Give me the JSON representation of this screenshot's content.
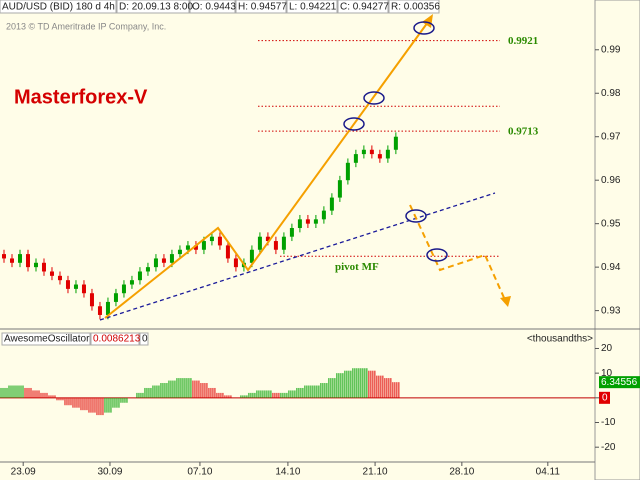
{
  "header": {
    "symbol": "AUD/USD (BID) 180 d 4h",
    "date": "D: 20.09.13 8:00",
    "open": "O: 0.9443",
    "high": "H: 0.94577",
    "low": "L: 0.94221",
    "close": "C: 0.94277",
    "range": "R: 0.00356"
  },
  "copyright": "2013 © TD Ameritrade IP Company, Inc.",
  "chart_data": [
    {
      "type": "candlestick",
      "annotation": "Masterforex-V",
      "up_color": "#00a000",
      "down_color": "#e00000",
      "xlim": [
        -0.5,
        73.9
      ],
      "ylim": [
        0.926,
        0.998
      ],
      "yticks": [
        0.93,
        0.94,
        0.95,
        0.96,
        0.97,
        0.98,
        0.99
      ],
      "levels": [
        {
          "price": 0.9921
        },
        {
          "price": 0.977
        },
        {
          "price": 0.9713
        },
        {
          "price": 0.9425,
          "label": "pivot MF"
        }
      ],
      "candles": [
        [
          0.943,
          0.944,
          0.941,
          0.942
        ],
        [
          0.942,
          0.943,
          0.94,
          0.941
        ],
        [
          0.941,
          0.944,
          0.94,
          0.943
        ],
        [
          0.943,
          0.944,
          0.939,
          0.94
        ],
        [
          0.94,
          0.942,
          0.939,
          0.941
        ],
        [
          0.941,
          0.942,
          0.938,
          0.939
        ],
        [
          0.939,
          0.94,
          0.937,
          0.938
        ],
        [
          0.938,
          0.939,
          0.936,
          0.937
        ],
        [
          0.937,
          0.938,
          0.934,
          0.935
        ],
        [
          0.935,
          0.937,
          0.934,
          0.936
        ],
        [
          0.936,
          0.937,
          0.933,
          0.934
        ],
        [
          0.934,
          0.935,
          0.93,
          0.931
        ],
        [
          0.931,
          0.932,
          0.928,
          0.929
        ],
        [
          0.929,
          0.933,
          0.928,
          0.932
        ],
        [
          0.932,
          0.935,
          0.931,
          0.934
        ],
        [
          0.934,
          0.937,
          0.933,
          0.936
        ],
        [
          0.936,
          0.938,
          0.935,
          0.937
        ],
        [
          0.937,
          0.94,
          0.936,
          0.939
        ],
        [
          0.939,
          0.941,
          0.938,
          0.94
        ],
        [
          0.94,
          0.943,
          0.939,
          0.942
        ],
        [
          0.942,
          0.943,
          0.94,
          0.941
        ],
        [
          0.941,
          0.944,
          0.94,
          0.943
        ],
        [
          0.943,
          0.945,
          0.942,
          0.944
        ],
        [
          0.944,
          0.946,
          0.943,
          0.945
        ],
        [
          0.945,
          0.946,
          0.943,
          0.944
        ],
        [
          0.944,
          0.947,
          0.943,
          0.946
        ],
        [
          0.946,
          0.948,
          0.945,
          0.947
        ],
        [
          0.947,
          0.948,
          0.944,
          0.945
        ],
        [
          0.945,
          0.946,
          0.941,
          0.942
        ],
        [
          0.942,
          0.943,
          0.939,
          0.94
        ],
        [
          0.94,
          0.942,
          0.939,
          0.941
        ],
        [
          0.941,
          0.945,
          0.94,
          0.944
        ],
        [
          0.944,
          0.948,
          0.943,
          0.947
        ],
        [
          0.947,
          0.948,
          0.945,
          0.946
        ],
        [
          0.946,
          0.947,
          0.943,
          0.944
        ],
        [
          0.944,
          0.948,
          0.943,
          0.947
        ],
        [
          0.947,
          0.95,
          0.946,
          0.949
        ],
        [
          0.949,
          0.952,
          0.948,
          0.951
        ],
        [
          0.951,
          0.952,
          0.949,
          0.95
        ],
        [
          0.95,
          0.952,
          0.949,
          0.951
        ],
        [
          0.951,
          0.954,
          0.95,
          0.953
        ],
        [
          0.953,
          0.957,
          0.952,
          0.956
        ],
        [
          0.956,
          0.961,
          0.955,
          0.96
        ],
        [
          0.96,
          0.965,
          0.959,
          0.964
        ],
        [
          0.964,
          0.967,
          0.963,
          0.966
        ],
        [
          0.966,
          0.968,
          0.965,
          0.967
        ],
        [
          0.967,
          0.968,
          0.965,
          0.966
        ],
        [
          0.966,
          0.967,
          0.964,
          0.965
        ],
        [
          0.965,
          0.968,
          0.964,
          0.967
        ],
        [
          0.967,
          0.971,
          0.966,
          0.97
        ]
      ]
    },
    {
      "type": "bar",
      "name": "AwesomeOscillator",
      "header_value": "0.0086213",
      "header_flag": "0",
      "units": "<thousandths>",
      "up_color": "#00a000",
      "down_color": "#e00000",
      "xlim": [
        -0.5,
        73.9
      ],
      "ylim": [
        -26,
        21
      ],
      "yticks": [
        -20,
        -10,
        0,
        10,
        20
      ],
      "xticks": [
        {
          "value": 2.4,
          "label": "23.09"
        },
        {
          "value": 13.25,
          "label": "30.09"
        },
        {
          "value": 24.5,
          "label": "07.10"
        },
        {
          "value": 35.5,
          "label": "14.10"
        },
        {
          "value": 46.4,
          "label": "21.10"
        },
        {
          "value": 57.25,
          "label": "28.10"
        },
        {
          "value": 68,
          "label": "04.11"
        }
      ],
      "values": [
        4,
        5,
        5,
        4,
        3,
        2,
        1,
        -1,
        -3,
        -4,
        -5,
        -6,
        -7,
        -6,
        -4,
        -2,
        0,
        2,
        4,
        5,
        6,
        7,
        8,
        8,
        7,
        6,
        4,
        2,
        1,
        0,
        1,
        2,
        3,
        3,
        2,
        2,
        3,
        4,
        5,
        5,
        6,
        8,
        10,
        11,
        12,
        12,
        11,
        9,
        8,
        6.34556
      ]
    }
  ]
}
